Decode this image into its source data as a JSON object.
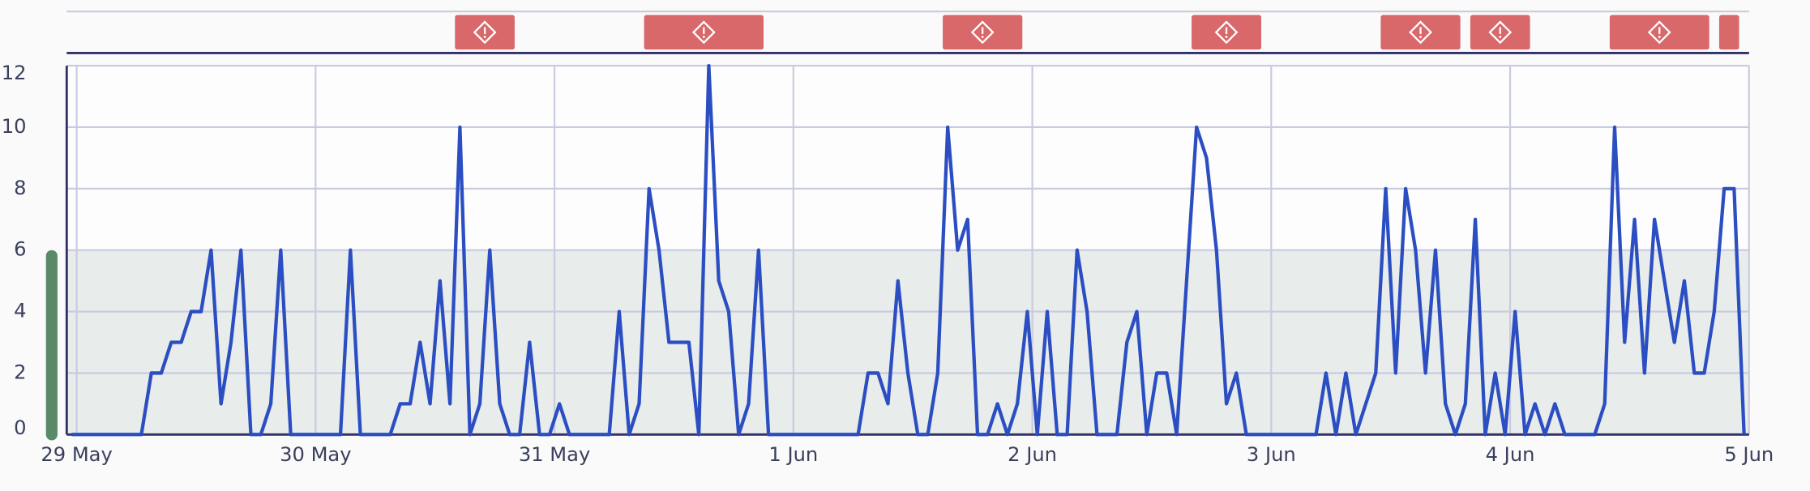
{
  "chart_data": {
    "type": "line",
    "x": [
      0,
      7,
      8,
      9,
      10,
      11,
      12,
      13,
      14,
      15,
      16,
      17,
      18,
      19,
      20,
      21,
      22,
      27,
      28,
      29,
      32,
      33,
      34,
      35,
      36,
      37,
      38,
      39,
      40,
      41,
      42,
      43,
      44,
      45,
      46,
      47,
      48,
      49,
      50,
      54,
      55,
      56,
      57,
      58,
      59,
      60,
      61,
      62,
      63,
      64,
      65,
      66,
      67,
      68,
      69,
      70,
      79,
      80,
      81,
      82,
      83,
      84,
      85,
      86,
      87,
      88,
      89,
      90,
      91,
      92,
      93,
      94,
      95,
      96,
      97,
      98,
      99,
      100,
      101,
      102,
      103,
      105,
      106,
      107,
      108,
      109,
      110,
      111,
      113,
      114,
      115,
      116,
      117,
      118,
      125,
      126,
      127,
      128,
      129,
      131,
      132,
      133,
      134,
      135,
      136,
      137,
      138,
      139,
      140,
      141,
      142,
      143,
      144,
      145,
      146,
      147,
      148,
      149,
      150,
      153,
      154,
      155,
      156,
      157,
      158,
      159,
      160,
      161,
      162,
      163,
      164,
      165,
      166,
      167,
      168
    ],
    "values": [
      0,
      0,
      2,
      2,
      3,
      3,
      4,
      4,
      6,
      1,
      3,
      6,
      0,
      0,
      1,
      6,
      0,
      0,
      6,
      0,
      0,
      1,
      1,
      3,
      1,
      5,
      1,
      10,
      0,
      1,
      6,
      1,
      0,
      0,
      3,
      0,
      0,
      1,
      0,
      0,
      4,
      0,
      1,
      8,
      6,
      3,
      3,
      3,
      0,
      12,
      5,
      4,
      0,
      1,
      6,
      0,
      0,
      2,
      2,
      1,
      5,
      2,
      0,
      0,
      2,
      10,
      6,
      7,
      0,
      0,
      1,
      0,
      1,
      4,
      0,
      4,
      0,
      0,
      6,
      4,
      0,
      0,
      3,
      4,
      0,
      2,
      2,
      0,
      10,
      9,
      6,
      1,
      2,
      0,
      0,
      2,
      0,
      2,
      0,
      2,
      8,
      2,
      8,
      6,
      2,
      6,
      1,
      0,
      1,
      7,
      0,
      2,
      0,
      4,
      0,
      1,
      0,
      1,
      0,
      0,
      1,
      10,
      3,
      7,
      2,
      7,
      5,
      3,
      5,
      2,
      2,
      4,
      8,
      8,
      0
    ],
    "color": "#2b4ec2",
    "xlim": [
      -0.5,
      168.5
    ],
    "xticks": [
      {
        "value": 0.5,
        "label": "29 May"
      },
      {
        "value": 24.5,
        "label": "30 May"
      },
      {
        "value": 48.5,
        "label": "31 May"
      },
      {
        "value": 72.5,
        "label": "1 Jun"
      },
      {
        "value": 96.5,
        "label": "2 Jun"
      },
      {
        "value": 120.5,
        "label": "3 Jun"
      },
      {
        "value": 144.5,
        "label": "4 Jun"
      },
      {
        "value": 168.5,
        "label": "5 Jun"
      }
    ],
    "ylim": [
      0,
      12
    ],
    "yticks": [
      0,
      2,
      4,
      6,
      8,
      10,
      12
    ],
    "grid": true,
    "band": [
      0,
      6
    ],
    "events": [
      {
        "start": 38.5,
        "end": 44.5
      },
      {
        "start": 57.5,
        "end": 69.5
      },
      {
        "start": 87.5,
        "end": 95.5
      },
      {
        "start": 112.5,
        "end": 119.5
      },
      {
        "start": 131.5,
        "end": 139.5
      },
      {
        "start": 140.5,
        "end": 146.5
      },
      {
        "start": 154.5,
        "end": 164.5
      },
      {
        "start": 165.5,
        "end": 167.5
      }
    ]
  }
}
